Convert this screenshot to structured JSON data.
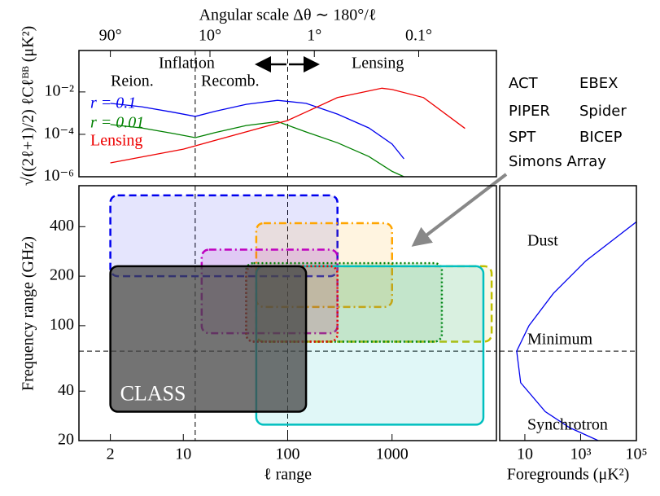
{
  "chart_data": [
    {
      "type": "line",
      "x2label": "Angular scale Δθ ∼ 180°/ℓ",
      "ylabel": "√((2ℓ+1)/2) ℓCℓᴮᴮ (μK²)",
      "xscale": "log",
      "yscale": "log",
      "xlim": [
        1,
        10000
      ],
      "ylim": [
        1e-06,
        0.9
      ],
      "yticks": [
        {
          "value": 1e-06,
          "label": "10⁻⁶"
        },
        {
          "value": 0.0001,
          "label": "10⁻⁴"
        },
        {
          "value": 0.01,
          "label": "10⁻²"
        }
      ],
      "x2ticks": [
        {
          "value": 2,
          "label": "90°"
        },
        {
          "value": 18,
          "label": "10°"
        },
        {
          "value": 180,
          "label": "1°"
        },
        {
          "value": 1800,
          "label": "0.1°"
        }
      ],
      "vlines": [
        13,
        100
      ],
      "annotations": [
        "Inflation",
        "Lensing",
        "Reion.",
        "Recomb."
      ],
      "series": [
        {
          "name": "r = 0.1",
          "color": "#0000ee",
          "x": [
            2,
            4,
            8,
            13,
            20,
            40,
            80,
            150,
            300,
            600,
            1000,
            1300
          ],
          "values": [
            0.0029,
            0.002,
            0.0011,
            0.0007,
            0.0012,
            0.0026,
            0.004,
            0.0029,
            0.0009,
            0.0002,
            3.5e-05,
            7e-06
          ]
        },
        {
          "name": "r = 0.01",
          "color": "#008000",
          "x": [
            2,
            4,
            8,
            13,
            20,
            40,
            80,
            150,
            300,
            600,
            1000,
            1300
          ],
          "values": [
            0.00029,
            0.0002,
            0.00011,
            7e-05,
            0.00012,
            0.00026,
            0.0004,
            0.00013,
            4e-05,
            9e-06,
            1.8e-06,
            1e-06
          ]
        },
        {
          "name": "Lensing",
          "color": "#ee0000",
          "x": [
            2,
            10,
            100,
            300,
            800,
            1000,
            2000,
            5000
          ],
          "values": [
            4.5e-06,
            2e-05,
            0.00045,
            0.0054,
            0.015,
            0.013,
            0.0054,
            0.00019
          ]
        }
      ]
    },
    {
      "type": "range",
      "xlabel": "ℓ range",
      "ylabel": "Frequency range (GHz)",
      "xscale": "log",
      "yscale": "log",
      "xlim": [
        1,
        10000
      ],
      "ylim": [
        20,
        710
      ],
      "xticks": [
        2,
        10,
        100,
        1000
      ],
      "yticks": [
        20,
        40,
        100,
        200,
        400
      ],
      "vlines": [
        13,
        100
      ],
      "hline": 70,
      "series": [
        {
          "name": "ACT",
          "color": "#00bfbf",
          "fill": "#00bfbf",
          "alpha": 0.12,
          "linestyle": "solid",
          "ell": [
            50,
            7500
          ],
          "freq": [
            25,
            230
          ]
        },
        {
          "name": "EBEX",
          "color": "#ffa500",
          "fill": "#ffa500",
          "alpha": 0.12,
          "linestyle": "dashdot",
          "ell": [
            50,
            1000
          ],
          "freq": [
            130,
            420
          ]
        },
        {
          "name": "PIPER",
          "color": "#0000ee",
          "fill": "#0000ee",
          "alpha": 0.1,
          "linestyle": "dashed",
          "ell": [
            2,
            300
          ],
          "freq": [
            200,
            620
          ]
        },
        {
          "name": "Spider",
          "color": "#bf00bf",
          "fill": "#bf00bf",
          "alpha": 0.12,
          "linestyle": "dashdot",
          "ell": [
            15,
            300
          ],
          "freq": [
            90,
            290
          ]
        },
        {
          "name": "SPT",
          "color": "#bfbf00",
          "fill": "#bfbf00",
          "alpha": 0.1,
          "linestyle": "dashed",
          "ell": [
            50,
            9000
          ],
          "freq": [
            80,
            230
          ]
        },
        {
          "name": "BICEP",
          "color": "#ee0000",
          "fill": "#ee0000",
          "alpha": 0.08,
          "linestyle": "dotted",
          "ell": [
            40,
            300
          ],
          "freq": [
            80,
            230
          ]
        },
        {
          "name": "Simons Array",
          "color": "#008000",
          "fill": "#008000",
          "alpha": 0.1,
          "linestyle": "dotted",
          "ell": [
            40,
            3000
          ],
          "freq": [
            80,
            240
          ]
        },
        {
          "name": "CLASS",
          "color": "#000000",
          "fill": "#444444",
          "alpha": 0.75,
          "linestyle": "solid",
          "ell": [
            2,
            150
          ],
          "freq": [
            30,
            230
          ]
        }
      ]
    },
    {
      "type": "line",
      "xlabel": "Foregrounds (μK²)",
      "xscale": "log",
      "yscale": "log",
      "xlim": [
        1.25,
        100000
      ],
      "ylim": [
        20,
        710
      ],
      "xticks": [
        10,
        {
          "value": 1000,
          "label": "10³"
        },
        {
          "value": 100000,
          "label": "10⁵"
        }
      ],
      "hline": 70,
      "annotations": [
        "Dust",
        "Minimum",
        "Synchrotron"
      ],
      "series": [
        {
          "color": "#0000ee",
          "x": [
            100000,
            1550,
            105,
            14,
            5.1,
            7.1,
            54,
            400,
            4300
          ],
          "values": [
            428,
            248,
            157,
            100,
            70,
            45,
            30,
            24,
            20
          ]
        }
      ]
    }
  ]
}
